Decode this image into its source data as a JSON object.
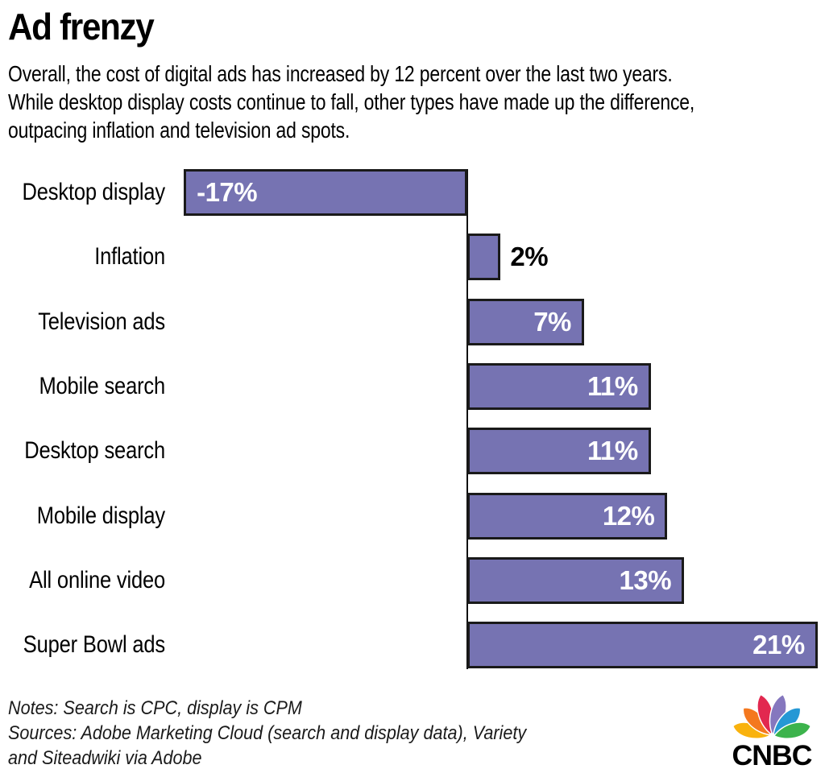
{
  "header": {
    "title": "Ad frenzy",
    "subtitle_lines": [
      "Overall, the cost of digital ads has increased by 12 percent over the last two years.",
      "While desktop display costs continue to fall, other types have made up the difference,",
      "outpacing inflation and television ad spots."
    ]
  },
  "chart_data": {
    "type": "bar",
    "orientation": "horizontal",
    "title": "Ad frenzy",
    "categories": [
      "Desktop display",
      "Inflation",
      "Television ads",
      "Mobile search",
      "Desktop search",
      "Mobile display",
      "All online video",
      "Super Bowl ads"
    ],
    "values": [
      -17,
      2,
      7,
      11,
      11,
      12,
      13,
      21
    ],
    "data_labels": [
      "-17%",
      "2%",
      "7%",
      "11%",
      "11%",
      "12%",
      "13%",
      "21%"
    ],
    "label_placement": [
      "inside-left",
      "outside-right",
      "inside-right",
      "inside-right",
      "inside-right",
      "inside-right",
      "inside-right",
      "inside-right"
    ],
    "label_colors": [
      "#FFFFFF",
      "#000000",
      "#FFFFFF",
      "#FFFFFF",
      "#FFFFFF",
      "#FFFFFF",
      "#FFFFFF",
      "#FFFFFF"
    ],
    "unit": "percent",
    "xlim": [
      -17,
      21
    ],
    "baseline": 0,
    "grid": false,
    "legend": false,
    "bar_color": "#7673B2",
    "bar_border_color": "#1A1A1A"
  },
  "footer": {
    "notes_line": "Notes: Search is CPC, display is CPM",
    "sources_line_1": "Sources: Adobe Marketing Cloud (search and display data), Variety",
    "sources_line_2": "and Siteadwiki via Adobe",
    "logo_text": "CNBC",
    "logo_feather_colors": [
      "#F9B20D",
      "#F4781F",
      "#E2284F",
      "#8577BE",
      "#2598D5",
      "#3CB34C"
    ]
  }
}
